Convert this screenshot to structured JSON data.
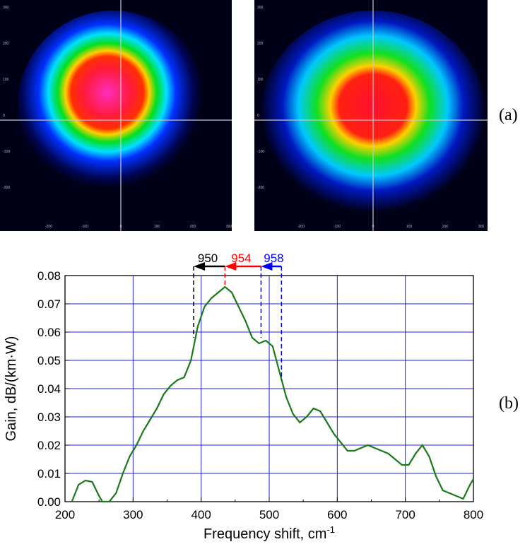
{
  "panel_labels": {
    "a": "(a)",
    "b": "(b)"
  },
  "beam_images": {
    "tick_labels_x": [
      "-200",
      "-100",
      "0",
      "100",
      "200",
      "300"
    ],
    "tick_labels_y": [
      "300",
      "200",
      "100",
      "0",
      "-100",
      "-200"
    ]
  },
  "chart_data": {
    "type": "line",
    "title": "",
    "xlabel": "Frequency shift, cm",
    "xlabel_sup": "-1",
    "ylabel": "Gain, dB/(km·W)",
    "xlim": [
      200,
      800
    ],
    "ylim": [
      0,
      0.08
    ],
    "xticks": [
      "200",
      "300",
      "400",
      "500",
      "600",
      "700",
      "800"
    ],
    "yticks": [
      "0.00",
      "0.01",
      "0.02",
      "0.03",
      "0.04",
      "0.05",
      "0.06",
      "0.07",
      "0.08"
    ],
    "grid": true,
    "series": [
      {
        "name": "Gain",
        "color": "#1a7a1a",
        "x": [
          210,
          220,
          230,
          240,
          250,
          255,
          265,
          275,
          285,
          295,
          305,
          315,
          325,
          335,
          345,
          355,
          365,
          375,
          385,
          395,
          405,
          415,
          425,
          435,
          445,
          455,
          465,
          475,
          485,
          495,
          505,
          515,
          525,
          535,
          545,
          555,
          565,
          575,
          585,
          595,
          605,
          615,
          625,
          635,
          645,
          655,
          665,
          675,
          685,
          695,
          705,
          715,
          725,
          735,
          745,
          755,
          765,
          775,
          785,
          795,
          800
        ],
        "y": [
          0,
          0.006,
          0.0075,
          0.007,
          0.002,
          0,
          0,
          0.003,
          0.01,
          0.016,
          0.02,
          0.025,
          0.029,
          0.033,
          0.038,
          0.041,
          0.043,
          0.044,
          0.05,
          0.062,
          0.069,
          0.072,
          0.074,
          0.076,
          0.074,
          0.069,
          0.064,
          0.058,
          0.056,
          0.057,
          0.055,
          0.046,
          0.037,
          0.031,
          0.028,
          0.03,
          0.033,
          0.032,
          0.028,
          0.024,
          0.021,
          0.018,
          0.018,
          0.019,
          0.02,
          0.019,
          0.018,
          0.017,
          0.015,
          0.013,
          0.013,
          0.017,
          0.02,
          0.016,
          0.009,
          0.004,
          0.003,
          0.002,
          0.001,
          0.006,
          0.008
        ]
      }
    ],
    "annotations": [
      {
        "label": "950",
        "color": "#000000",
        "x_from": 435,
        "x_to": 389,
        "marker_x": 389
      },
      {
        "label": "954",
        "color": "#ff0000",
        "x_from": 488,
        "x_to": 435,
        "marker_x": 435
      },
      {
        "label": "958",
        "color": "#0000ff",
        "x_from": 518,
        "x_to": 488,
        "marker_x": 518,
        "marker_x2": 488
      }
    ]
  }
}
